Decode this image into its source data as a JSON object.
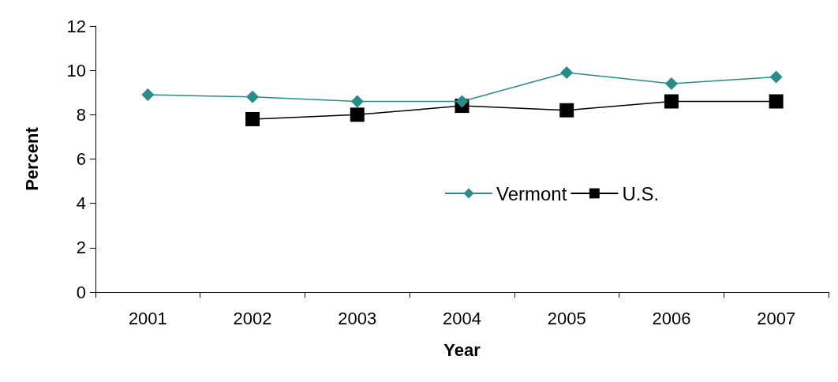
{
  "chart_data": {
    "type": "line",
    "xlabel": "Year",
    "ylabel": "Percent",
    "categories": [
      "2001",
      "2002",
      "2003",
      "2004",
      "2005",
      "2006",
      "2007"
    ],
    "series": [
      {
        "name": "Vermont",
        "color": "#2a8c88",
        "marker": "diamond",
        "values": [
          8.9,
          8.8,
          8.6,
          8.6,
          9.9,
          9.4,
          9.7
        ]
      },
      {
        "name": "U.S.",
        "color": "#000000",
        "marker": "square",
        "values": [
          null,
          7.8,
          8.0,
          8.4,
          8.2,
          8.6,
          8.6
        ]
      }
    ],
    "ylim": [
      0,
      12
    ],
    "yticks": [
      0,
      2,
      4,
      6,
      8,
      10,
      12
    ],
    "grid": false,
    "legend": "right"
  }
}
